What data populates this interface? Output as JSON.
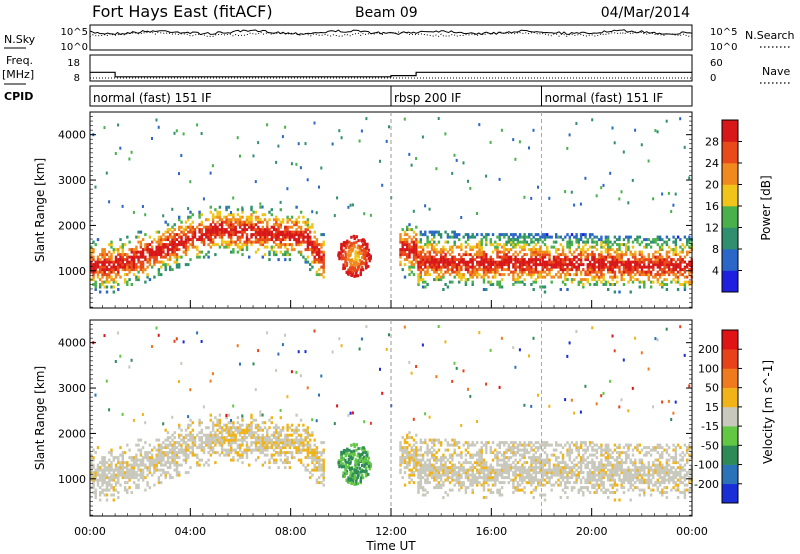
{
  "header": {
    "station": "Fort Hays East (fitACF)",
    "beam": "Beam 09",
    "date": "04/Mar/2014"
  },
  "labels": {
    "nsky": "N.Sky",
    "nsearch": "N.Search",
    "freq_line1": "Freq.",
    "freq_line2": "[MHz]",
    "nave": "Nave",
    "cpid": "CPID",
    "xlabel": "Time UT"
  },
  "chart_data": [
    {
      "type": "line",
      "name": "noise",
      "y_left_ticks": [
        "10^5",
        "10^0"
      ],
      "y_right_ticks": [
        "10^5",
        "10^0"
      ],
      "series": [
        {
          "name": "N.Sky",
          "style": "solid"
        },
        {
          "name": "N.Search",
          "style": "dotted"
        }
      ]
    },
    {
      "type": "line",
      "name": "frequency",
      "y_left_ticks": [
        "18",
        "8"
      ],
      "y_right_ticks": [
        "60",
        "0"
      ],
      "freq_steps": [
        {
          "x": [
            0.0,
            1.0
          ],
          "y": 13.8
        },
        {
          "x": [
            1.0,
            12.0
          ],
          "y": 10.8
        },
        {
          "x": [
            12.0,
            13.0
          ],
          "y": 11.6
        },
        {
          "x": [
            13.0,
            24.0
          ],
          "y": 13.8
        }
      ],
      "nave_level": 12
    },
    {
      "type": "table",
      "name": "cpid",
      "segments": [
        {
          "label": "normal (fast) 151 IF",
          "start": 0,
          "end": 12
        },
        {
          "label": "rbsp 200 IF",
          "start": 12,
          "end": 18
        },
        {
          "label": "normal (fast) 151 IF",
          "start": 18,
          "end": 24
        }
      ]
    },
    {
      "type": "heatmap",
      "name": "power",
      "ylabel": "Slant Range [km]",
      "yticks": [
        1000,
        2000,
        3000,
        4000
      ],
      "ylim": [
        180,
        4500
      ],
      "colorbar": {
        "title": "Power [dB]",
        "ticks": [
          4,
          8,
          12,
          16,
          20,
          24,
          28
        ],
        "colors": [
          "#1f1fe0",
          "#2b67c8",
          "#2f8f6f",
          "#49b04c",
          "#f0c419",
          "#f08a1e",
          "#e84a1a",
          "#d81818"
        ]
      }
    },
    {
      "type": "heatmap",
      "name": "velocity",
      "ylabel": "Slant Range [km]",
      "yticks": [
        1000,
        2000,
        3000,
        4000
      ],
      "ylim": [
        180,
        4500
      ],
      "colorbar": {
        "title": "Velocity [m s^-1]",
        "ticks": [
          200,
          100,
          50,
          15,
          -15,
          -50,
          -100,
          -200
        ],
        "colors": [
          "#1a2ed8",
          "#2a73b8",
          "#2e8b57",
          "#62c843",
          "#c8c8bd",
          "#f0b419",
          "#f07a1e",
          "#e8421a",
          "#e01414"
        ]
      }
    }
  ],
  "xaxis": {
    "range": [
      0,
      24
    ],
    "ticks": [
      "00:00",
      "04:00",
      "08:00",
      "12:00",
      "16:00",
      "20:00",
      "00:00"
    ]
  }
}
